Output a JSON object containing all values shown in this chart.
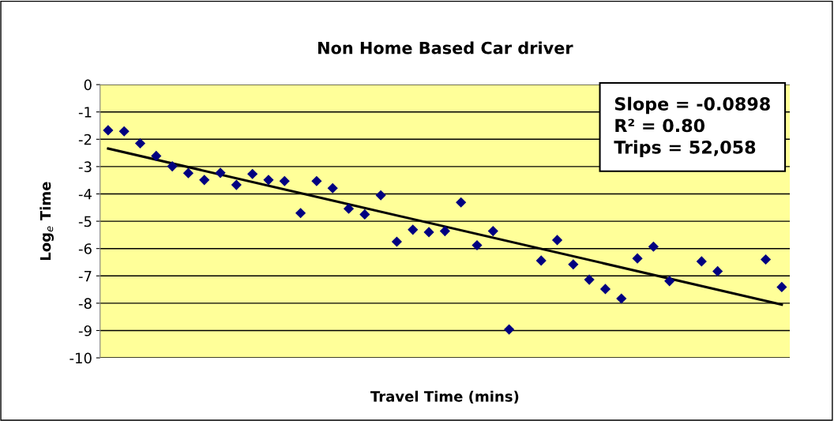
{
  "chart_data": {
    "type": "scatter",
    "title": "Non Home Based Car driver",
    "xlabel": "Travel Time (mins)",
    "ylabel": "Log$_{e}$ Time",
    "categories": [
      null,
      null,
      null,
      null,
      null,
      null,
      null,
      null,
      null,
      null,
      null,
      null,
      null,
      null,
      null,
      null,
      null,
      null,
      null,
      null,
      null,
      null,
      null,
      null,
      null,
      null,
      null,
      null,
      null,
      null,
      null,
      null,
      null,
      null,
      null,
      null,
      null,
      null,
      null,
      null,
      null,
      null,
      null
    ],
    "series": [
      {
        "color": "#000080",
        "marker": "diamond",
        "values": [
          -1.67,
          -1.71,
          -2.15,
          -2.61,
          -2.99,
          -3.24,
          -3.49,
          -3.23,
          -3.67,
          -3.27,
          -3.49,
          -3.53,
          -4.7,
          -3.53,
          -3.79,
          -4.54,
          -4.75,
          -4.05,
          -5.75,
          -5.31,
          -5.4,
          -5.36,
          -4.31,
          -5.88,
          -5.36,
          -8.96,
          null,
          -6.44,
          -5.69,
          -6.58,
          -7.14,
          -7.48,
          -7.83,
          -6.36,
          -5.93,
          -7.19,
          null,
          -6.47,
          -6.83,
          null,
          null,
          -6.4,
          -7.41
        ]
      },
      {
        "type": "line",
        "color": "#000000",
        "values": [
          -2.34,
          null,
          null,
          null,
          null,
          null,
          null,
          null,
          null,
          null,
          null,
          null,
          null,
          null,
          null,
          null,
          null,
          null,
          null,
          null,
          null,
          null,
          null,
          null,
          null,
          null,
          null,
          null,
          null,
          null,
          null,
          null,
          null,
          null,
          null,
          null,
          null,
          null,
          null,
          null,
          null,
          null,
          -8.05
        ]
      }
    ],
    "ylim": [
      -10,
      0
    ],
    "yticks": [
      0,
      -1,
      -2,
      -3,
      -4,
      -5,
      -6,
      -7,
      -8,
      -9,
      -10
    ],
    "grid": "y",
    "legend": false,
    "tick_labels": "y",
    "annotations": [
      "Slope = -0.0898",
      "R² = 0.80",
      "Trips = 52,058"
    ]
  }
}
